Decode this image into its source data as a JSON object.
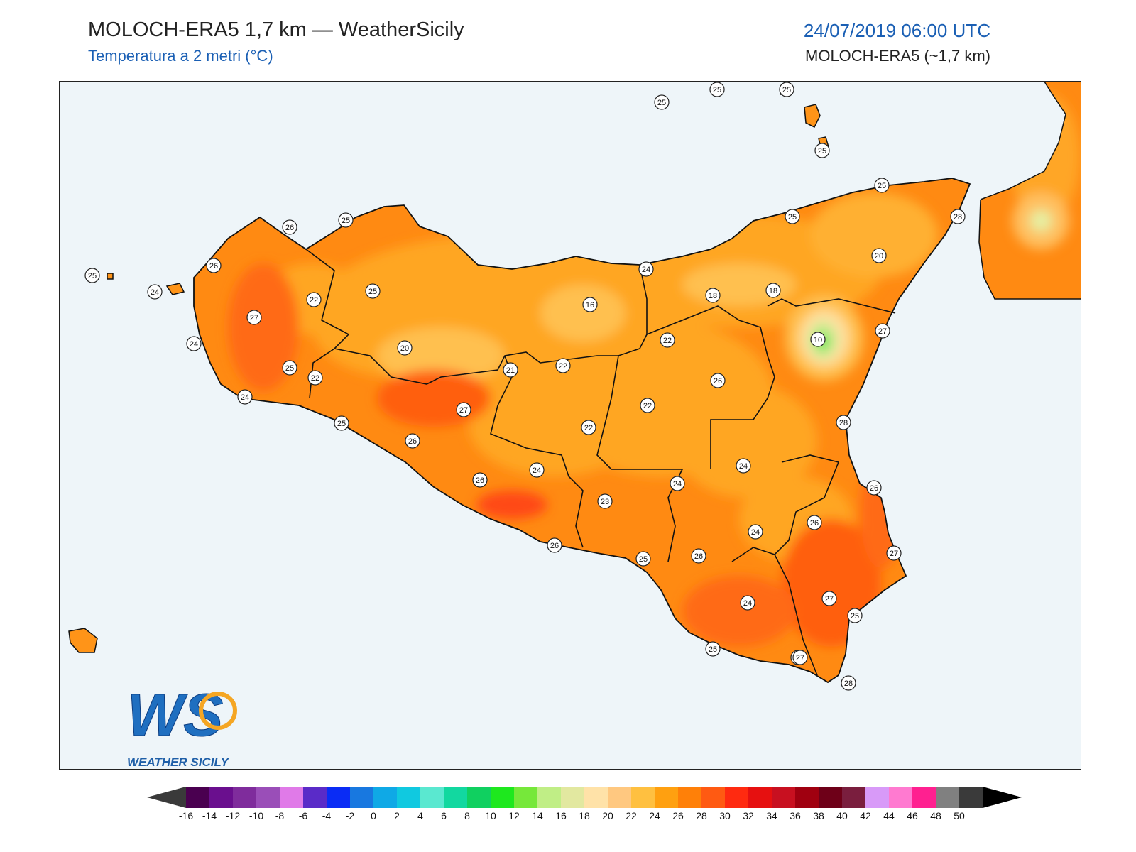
{
  "header": {
    "title": "MOLOCH-ERA5 1,7 km — WeatherSicily",
    "subtitle": "Temperatura a 2 metri (°C)",
    "datetime": "24/07/2019 06:00 UTC",
    "model_info": "MOLOCH-ERA5 (~1,7 km)"
  },
  "logo": {
    "letters": "WS",
    "text": "WEATHER SICILY"
  },
  "colors": {
    "sea": "#eef5f9",
    "border": "#111111",
    "accent_blue": "#1a5fb4"
  },
  "colorbar": {
    "ticks": [
      "-16",
      "-14",
      "-12",
      "-10",
      "-8",
      "-6",
      "-4",
      "-2",
      "0",
      "2",
      "4",
      "6",
      "8",
      "10",
      "12",
      "14",
      "16",
      "18",
      "20",
      "22",
      "24",
      "26",
      "28",
      "30",
      "32",
      "34",
      "36",
      "38",
      "40",
      "42",
      "44",
      "46",
      "48",
      "50"
    ],
    "colors": [
      "#4a0050",
      "#6a0f8e",
      "#7f2c9c",
      "#9a4eb8",
      "#e07ae8",
      "#5a2bc8",
      "#0a2cf5",
      "#1878e0",
      "#0fa9e6",
      "#10c9e0",
      "#5ae8d0",
      "#12d8a0",
      "#10d060",
      "#1ee81e",
      "#76e83a",
      "#c0ee86",
      "#e2e8a0",
      "#ffe2a8",
      "#ffc880",
      "#ffc040",
      "#ffa010",
      "#ff8008",
      "#ff5a12",
      "#ff2a10",
      "#e61010",
      "#c81020",
      "#a00010",
      "#6e0018",
      "#7a1e3e",
      "#d89af8",
      "#ff7ad0",
      "#ff2090",
      "#808080",
      "#3a3a3a"
    ],
    "low_color": "#3a3a3a",
    "high_color": "#000000"
  },
  "stations": [
    {
      "label": "25"
    },
    {
      "label": "25"
    },
    {
      "label": "25"
    },
    {
      "label": "25"
    },
    {
      "label": "25"
    },
    {
      "label": "28"
    },
    {
      "label": "20"
    },
    {
      "label": "18"
    },
    {
      "label": "18"
    },
    {
      "label": "27"
    },
    {
      "label": "10"
    },
    {
      "label": "24"
    },
    {
      "label": "25"
    },
    {
      "label": "26"
    },
    {
      "label": "28"
    },
    {
      "label": "27"
    },
    {
      "label": "25"
    },
    {
      "label": "26"
    },
    {
      "label": "22"
    },
    {
      "label": "27"
    },
    {
      "label": "24"
    },
    {
      "label": "25"
    },
    {
      "label": "24"
    },
    {
      "label": "22"
    },
    {
      "label": "25"
    },
    {
      "label": "20"
    },
    {
      "label": "25"
    },
    {
      "label": "16"
    },
    {
      "label": "21"
    },
    {
      "label": "22"
    },
    {
      "label": "22"
    },
    {
      "label": "22"
    },
    {
      "label": "27"
    },
    {
      "label": "25"
    },
    {
      "label": "26"
    },
    {
      "label": "26"
    },
    {
      "label": "24"
    },
    {
      "label": "22"
    },
    {
      "label": "23"
    },
    {
      "label": "24"
    },
    {
      "label": "26"
    },
    {
      "label": "25"
    },
    {
      "label": "26"
    },
    {
      "label": "24"
    },
    {
      "label": "24"
    },
    {
      "label": "24"
    },
    {
      "label": "26"
    },
    {
      "label": "27"
    },
    {
      "label": "28"
    },
    {
      "label": "27"
    },
    {
      "label": "27"
    },
    {
      "label": "26"
    },
    {
      "label": "25"
    },
    {
      "label": "25"
    },
    {
      "label": "26"
    },
    {
      "label": "24"
    }
  ]
}
